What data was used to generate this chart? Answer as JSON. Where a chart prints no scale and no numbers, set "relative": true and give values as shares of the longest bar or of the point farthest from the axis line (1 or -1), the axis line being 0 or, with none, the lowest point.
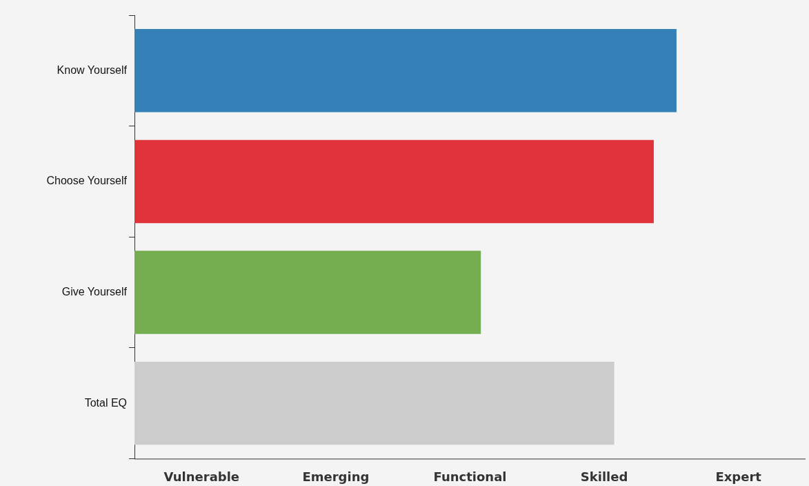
{
  "chart_data": {
    "type": "bar",
    "orientation": "horizontal",
    "relative": true,
    "categories": [
      "Know Yourself",
      "Choose Yourself",
      "Give Yourself",
      "Total EQ"
    ],
    "values": [
      1,
      0.958,
      0.639,
      0.885
    ],
    "colors": [
      "#3680b8",
      "#e0333a",
      "#75ae50",
      "#cccccc"
    ],
    "annotations": [
      "Vulnerable",
      "Emerging",
      "Functional",
      "Skilled",
      "Expert"
    ]
  }
}
